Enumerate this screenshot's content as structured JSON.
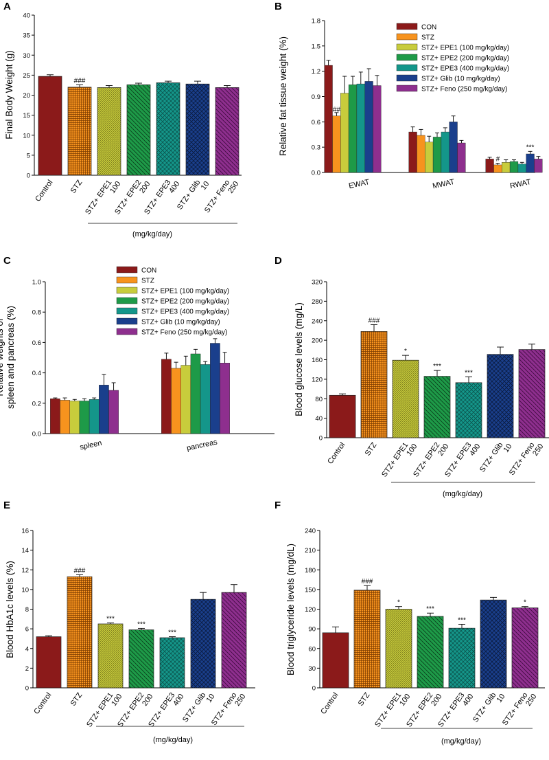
{
  "colors": {
    "control": "#8b1a1a",
    "stz": "#f7931e",
    "epe1": "#c8cc3c",
    "epe2": "#1e9a48",
    "epe3": "#14968a",
    "glib": "#1a3f8c",
    "feno": "#8e2f8e"
  },
  "chart_data": [
    {
      "panel": "A",
      "type": "bar",
      "ylabel": "Final Body Weight (g)",
      "ylim": [
        0,
        40
      ],
      "yticks": [
        0,
        5,
        10,
        15,
        20,
        25,
        30,
        35,
        40
      ],
      "categories": [
        [
          "Control"
        ],
        [
          "STZ"
        ],
        [
          "STZ+ EPE1",
          "100"
        ],
        [
          "STZ+ EPE2",
          "200"
        ],
        [
          "STZ+ EPE3",
          "400"
        ],
        [
          "STZ+ Glib",
          "10"
        ],
        [
          "STZ+ Feno",
          "250"
        ]
      ],
      "values": [
        24.7,
        22.0,
        21.9,
        22.6,
        23.1,
        22.8,
        21.9
      ],
      "errors": [
        0.4,
        0.6,
        0.5,
        0.4,
        0.4,
        0.7,
        0.5
      ],
      "annotations": [
        "",
        "###",
        "",
        "",
        "",
        "",
        ""
      ],
      "unit_label": "(mg/kg/day)"
    },
    {
      "panel": "B",
      "type": "bar",
      "ylabel": "Relative fat tissue weight (%)",
      "ylim": [
        0,
        1.8
      ],
      "yticks": [
        "0.0",
        "0.3",
        "0.6",
        "0.9",
        "1.2",
        "1.5",
        "1.8"
      ],
      "categories": [
        "EWAT",
        "MWAT",
        "RWAT"
      ],
      "series": [
        {
          "name": "CON",
          "values": [
            1.27,
            0.48,
            0.16
          ],
          "errors": [
            0.06,
            0.06,
            0.02
          ],
          "annotations": [
            "",
            "",
            ""
          ]
        },
        {
          "name": "STZ",
          "values": [
            0.67,
            0.44,
            0.09
          ],
          "errors": [
            0.04,
            0.07,
            0.02
          ],
          "annotations": [
            "##",
            "",
            "#"
          ]
        },
        {
          "name": "STZ+ EPE1 (100 mg/kg/day)",
          "values": [
            0.94,
            0.36,
            0.12
          ],
          "errors": [
            0.2,
            0.07,
            0.03
          ],
          "annotations": [
            "",
            "",
            ""
          ]
        },
        {
          "name": "STZ+ EPE2 (200 mg/kg/day)",
          "values": [
            1.04,
            0.42,
            0.13
          ],
          "errors": [
            0.1,
            0.05,
            0.02
          ],
          "annotations": [
            "",
            "",
            ""
          ]
        },
        {
          "name": "STZ+ EPE3 (400 mg/kg/day)",
          "values": [
            1.05,
            0.48,
            0.1
          ],
          "errors": [
            0.14,
            0.05,
            0.02
          ],
          "annotations": [
            "",
            "",
            ""
          ]
        },
        {
          "name": "STZ+ Glib (10 mg/kg/day)",
          "values": [
            1.08,
            0.6,
            0.22
          ],
          "errors": [
            0.15,
            0.07,
            0.03
          ],
          "annotations": [
            "",
            "",
            "***"
          ]
        },
        {
          "name": "STZ+ Feno (250 mg/kg/day)",
          "values": [
            1.03,
            0.35,
            0.16
          ],
          "errors": [
            0.12,
            0.03,
            0.03
          ],
          "annotations": [
            "",
            "",
            ""
          ]
        }
      ]
    },
    {
      "panel": "C",
      "type": "bar",
      "ylabel": [
        "Relative weights of",
        "spleen and pancreas (%)"
      ],
      "ylim": [
        0,
        1.0
      ],
      "yticks": [
        "0.0",
        "0.2",
        "0.4",
        "0.6",
        "0.8",
        "1.0"
      ],
      "categories": [
        "spleen",
        "pancreas"
      ],
      "series": [
        {
          "name": "CON",
          "values": [
            0.23,
            0.49
          ],
          "errors": [
            0.005,
            0.04
          ]
        },
        {
          "name": "STZ",
          "values": [
            0.22,
            0.43
          ],
          "errors": [
            0.015,
            0.04
          ]
        },
        {
          "name": "STZ+ EPE1 (100 mg/kg/day)",
          "values": [
            0.215,
            0.45
          ],
          "errors": [
            0.01,
            0.06
          ]
        },
        {
          "name": "STZ+ EPE2 (200 mg/kg/day)",
          "values": [
            0.215,
            0.525
          ],
          "errors": [
            0.015,
            0.03
          ]
        },
        {
          "name": "STZ+ EPE3 (400 mg/kg/day)",
          "values": [
            0.225,
            0.455
          ],
          "errors": [
            0.01,
            0.02
          ]
        },
        {
          "name": "STZ+ Glib (10 mg/kg/day)",
          "values": [
            0.32,
            0.595
          ],
          "errors": [
            0.07,
            0.03
          ]
        },
        {
          "name": "STZ+ Feno (250 mg/kg/day)",
          "values": [
            0.285,
            0.465
          ],
          "errors": [
            0.05,
            0.07
          ]
        }
      ]
    },
    {
      "panel": "D",
      "type": "bar",
      "ylabel": "Blood glucose levels (mg/L)",
      "ylim": [
        0,
        320
      ],
      "yticks": [
        0,
        40,
        80,
        120,
        160,
        200,
        240,
        280,
        320
      ],
      "categories": [
        [
          "Control"
        ],
        [
          "STZ"
        ],
        [
          "STZ+ EPE1",
          "100"
        ],
        [
          "STZ+ EPE2",
          "200"
        ],
        [
          "STZ+ EPE3",
          "400"
        ],
        [
          "STZ+ Glib",
          "10"
        ],
        [
          "STZ+ Feno",
          "250"
        ]
      ],
      "values": [
        87,
        218,
        159,
        126,
        113,
        171,
        181
      ],
      "errors": [
        3,
        14,
        10,
        12,
        12,
        15,
        11
      ],
      "annotations": [
        "",
        "###",
        "*",
        "***",
        "***",
        "",
        ""
      ],
      "unit_label": "(mg/kg/day)"
    },
    {
      "panel": "E",
      "type": "bar",
      "ylabel": "Blood HbA1c levels (%)",
      "ylim": [
        0,
        16
      ],
      "yticks": [
        0,
        2,
        4,
        6,
        8,
        10,
        12,
        14,
        16
      ],
      "categories": [
        [
          "Control"
        ],
        [
          "STZ"
        ],
        [
          "STZ+ EPE1",
          "100"
        ],
        [
          "STZ+ EPE2",
          "200"
        ],
        [
          "STZ+ EPE3",
          "400"
        ],
        [
          "STZ+ Glib",
          "10"
        ],
        [
          "STZ+ Feno",
          "250"
        ]
      ],
      "values": [
        5.2,
        11.3,
        6.5,
        5.9,
        5.1,
        9.0,
        9.7
      ],
      "errors": [
        0.1,
        0.2,
        0.1,
        0.15,
        0.1,
        0.7,
        0.8
      ],
      "annotations": [
        "",
        "###",
        "***",
        "***",
        "***",
        "",
        ""
      ],
      "unit_label": "(mg/kg/day)"
    },
    {
      "panel": "F",
      "type": "bar",
      "ylabel": "Blood triglyceride levels (mg/dL)",
      "ylim": [
        0,
        240
      ],
      "yticks": [
        0,
        30,
        60,
        90,
        120,
        150,
        180,
        210,
        240
      ],
      "categories": [
        [
          "Control"
        ],
        [
          "STZ"
        ],
        [
          "STZ+ EPE1",
          "100"
        ],
        [
          "STZ+ EPE2",
          "200"
        ],
        [
          "STZ+ EPE3",
          "400"
        ],
        [
          "STZ+ Glib",
          "10"
        ],
        [
          "STZ+ Feno",
          "250"
        ]
      ],
      "values": [
        84,
        149,
        120,
        109,
        91,
        134,
        122
      ],
      "errors": [
        9,
        7,
        4,
        5,
        6,
        4,
        2
      ],
      "annotations": [
        "",
        "###",
        "*",
        "***",
        "***",
        "",
        "*"
      ],
      "unit_label": "(mg/kg/day)"
    }
  ]
}
